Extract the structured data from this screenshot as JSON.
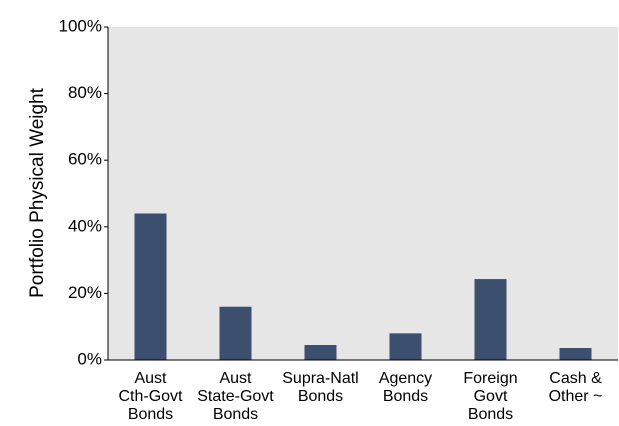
{
  "chart_data": {
    "type": "bar",
    "ylabel": "Portfolio Physical Weight",
    "categories": [
      "Aust\nCth-Govt\nBonds",
      "Aust\nState-Govt\nBonds",
      "Supra-Natl\nBonds",
      "Agency\nBonds",
      "Foreign\nGovt\nBonds",
      "Cash &\nOther ~"
    ],
    "values": [
      44,
      16,
      4.5,
      8,
      24.3,
      3.6
    ],
    "color": "#3d4f6e",
    "ylim": [
      0,
      100
    ],
    "yticks": [
      {
        "value": 0,
        "label": "0%"
      },
      {
        "value": 20,
        "label": "20%"
      },
      {
        "value": 40,
        "label": "40%"
      },
      {
        "value": 60,
        "label": "60%"
      },
      {
        "value": 80,
        "label": "80%"
      },
      {
        "value": 100,
        "label": "100%"
      }
    ],
    "grid": false
  }
}
